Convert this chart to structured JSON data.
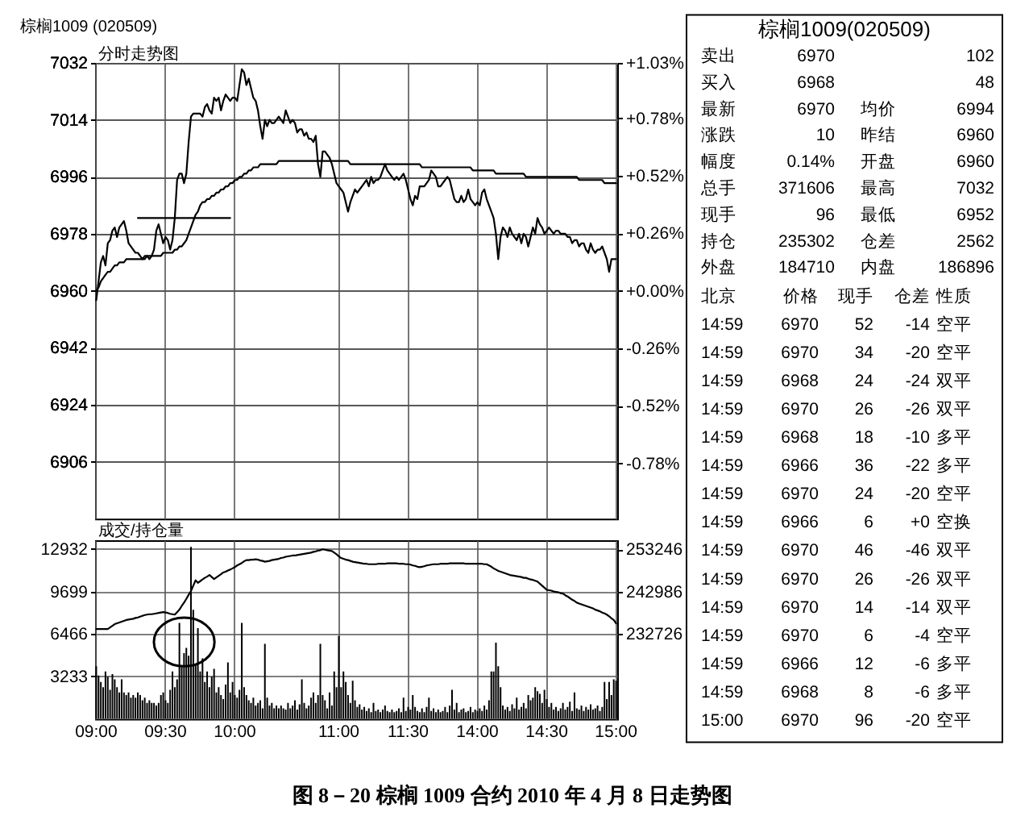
{
  "chart_data": [
    {
      "type": "line",
      "title": "棕榈1009 (020509)",
      "subtitle": "分时走势图",
      "annotations": [
        "图 8－20 棕榈 1009 合约 2010 年 4 月 8 日走势图"
      ],
      "categories": [
        "09:00",
        null,
        null,
        null,
        null,
        null,
        null,
        null,
        null,
        null,
        null,
        null,
        null,
        null,
        null,
        null,
        null,
        null,
        null,
        null,
        null,
        null,
        null,
        null,
        null,
        null,
        null,
        null,
        null,
        null,
        "09:30",
        null,
        null,
        null,
        null,
        null,
        null,
        null,
        null,
        null,
        null,
        null,
        null,
        null,
        null,
        null,
        null,
        null,
        null,
        null,
        null,
        null,
        null,
        null,
        null,
        null,
        null,
        null,
        null,
        null,
        "10:00",
        null,
        null,
        null,
        null,
        null,
        null,
        null,
        null,
        null,
        null,
        null,
        null,
        null,
        null,
        null,
        null,
        null,
        null,
        null,
        null,
        null,
        null,
        null,
        null,
        null,
        null,
        null,
        null,
        null,
        null,
        null,
        null,
        null,
        null,
        null,
        null,
        null,
        null,
        null,
        null,
        null,
        null,
        null,
        null,
        "11:00",
        null,
        null,
        null,
        null,
        null,
        null,
        null,
        null,
        null,
        null,
        null,
        null,
        null,
        null,
        null,
        null,
        null,
        null,
        null,
        null,
        null,
        null,
        null,
        null,
        null,
        null,
        null,
        null,
        null,
        "11:30",
        null,
        null,
        null,
        null,
        null,
        null,
        null,
        null,
        null,
        null,
        null,
        null,
        null,
        null,
        null,
        null,
        null,
        null,
        null,
        null,
        null,
        null,
        null,
        null,
        null,
        null,
        null,
        null,
        null,
        "14:00",
        null,
        null,
        null,
        null,
        null,
        null,
        null,
        null,
        null,
        null,
        null,
        null,
        null,
        null,
        null,
        null,
        null,
        null,
        null,
        null,
        null,
        null,
        null,
        null,
        null,
        null,
        null,
        null,
        null,
        "14:30",
        null,
        null,
        null,
        null,
        null,
        null,
        null,
        null,
        null,
        null,
        null,
        null,
        null,
        null,
        null,
        null,
        null,
        null,
        null,
        null,
        null,
        null,
        null,
        null,
        null,
        null,
        null,
        null,
        null,
        "15:00"
      ],
      "ylim": [
        6888,
        7032
      ],
      "yticks": [
        6906,
        6924,
        6942,
        6960,
        6978,
        6996,
        7014,
        7032
      ],
      "y2lim": [
        -1.03,
        1.03
      ],
      "y2ticks": [
        {
          "value": -0.78,
          "label": "-0.78%"
        },
        {
          "value": -0.52,
          "label": "-0.52%"
        },
        {
          "value": -0.26,
          "label": "-0.26%"
        },
        {
          "value": 0,
          "label": "+0.00%"
        },
        {
          "value": 0.26,
          "label": "+0.26%"
        },
        {
          "value": 0.52,
          "label": "+0.52%"
        },
        {
          "value": 0.78,
          "label": "+0.78%"
        },
        {
          "value": 1.03,
          "label": "+1.03%"
        }
      ],
      "tick_labels": "y",
      "grid": true,
      "series": [
        {
          "color": "#000000",
          "values": [
            6957,
            6963,
            6969,
            6971,
            6968,
            6975,
            6976,
            6979,
            6980,
            6977,
            6980,
            6981,
            6982,
            6979,
            6975,
            6974,
            6973,
            6972,
            6972,
            6971,
            6970,
            6971,
            6971,
            6970,
            6971,
            6973,
            6979,
            6981,
            6978,
            6975,
            6977,
            6976,
            6973,
            6976,
            6983,
            6995,
            6997,
            6997,
            6994,
            6997,
            7007,
            7015,
            7016,
            7016,
            7016,
            7016,
            7015,
            7018,
            7019,
            7017,
            7016,
            7021,
            7020,
            7021,
            7017,
            7020,
            7022,
            7021,
            7020,
            7021,
            7021,
            7020,
            7025,
            7030,
            7029,
            7025,
            7027,
            7024,
            7021,
            7020,
            7017,
            7012,
            7008,
            7014,
            7012,
            7014,
            7013,
            7013,
            7014,
            7015,
            7014,
            7013,
            7017,
            7015,
            7013,
            7014,
            7013,
            7010,
            7011,
            7011,
            7009,
            7010,
            7008,
            7008,
            7007,
            7009,
            7000,
            6996,
            7004,
            7004,
            7003,
            7002,
            7000,
            6997,
            6994,
            6993,
            6992,
            6991,
            6988,
            6985,
            6988,
            6990,
            6992,
            6991,
            6992,
            6993,
            6994,
            6995,
            6993,
            6996,
            6994,
            6995,
            6995,
            6996,
            6998,
            7000,
            6998,
            6997,
            6996,
            6995,
            6996,
            6995,
            6996,
            6997,
            6995,
            6992,
            6989,
            6987,
            6990,
            6989,
            6993,
            6993,
            6993,
            6994,
            6995,
            6998,
            6997,
            6996,
            6993,
            6993,
            6994,
            6995,
            6996,
            6995,
            6992,
            6989,
            6988,
            6988,
            6990,
            6988,
            6989,
            6992,
            6989,
            6988,
            6987,
            6988,
            6987,
            6991,
            6992,
            6989,
            6987,
            6985,
            6983,
            6978,
            6970,
            6977,
            6980,
            6979,
            6977,
            6980,
            6978,
            6977,
            6976,
            6978,
            6975,
            6978,
            6977,
            6974,
            6977,
            6980,
            6978,
            6983,
            6981,
            6980,
            6978,
            6979,
            6980,
            6979,
            6978,
            6979,
            6979,
            6978,
            6978,
            6978,
            6977,
            6977,
            6975,
            6976,
            6976,
            6974,
            6975,
            6975,
            6973,
            6972,
            6975,
            6973,
            6972,
            6973,
            6973,
            6974,
            6972,
            6970,
            6966,
            6970,
            6970,
            6970
          ]
        },
        {
          "color": "#000000",
          "values": [
            6960,
            6961,
            6963,
            6964,
            6965,
            6966,
            6966,
            6967,
            6968,
            6968,
            6969,
            6969,
            6969,
            6970,
            6970,
            6970,
            6970,
            6970,
            6970,
            6970,
            6970,
            6970,
            6971,
            6971,
            6971,
            6971,
            6971,
            6971,
            6971,
            6972,
            6972,
            6972,
            6972,
            6972,
            6973,
            6973,
            6974,
            6974,
            6975,
            6976,
            6978,
            6980,
            6982,
            6984,
            6985,
            6987,
            6988,
            6988,
            6989,
            6989,
            6990,
            6990,
            6991,
            6991,
            6992,
            6992,
            6993,
            6993,
            6994,
            6994,
            6995,
            6995,
            6996,
            6996,
            6997,
            6997,
            6998,
            6998,
            6999,
            6999,
            6999,
            7000,
            7000,
            7000,
            7000,
            7000,
            7000,
            7000,
            7000,
            7001,
            7001,
            7001,
            7001,
            7001,
            7001,
            7001,
            7001,
            7001,
            7001,
            7001,
            7001,
            7001,
            7001,
            7001,
            7001,
            7001,
            7001,
            7001,
            7001,
            7001,
            7001,
            7001,
            7001,
            7001,
            7001,
            7001,
            7001,
            7001,
            7001,
            7001,
            7000,
            7000,
            7000,
            7000,
            7000,
            7000,
            7000,
            7000,
            7000,
            7000,
            7000,
            7000,
            7000,
            7000,
            7000,
            7000,
            7000,
            7000,
            7000,
            7000,
            7000,
            7000,
            7000,
            7000,
            7000,
            7000,
            7000,
            7000,
            7000,
            7000,
            7000,
            6999,
            6999,
            6999,
            6999,
            6999,
            6999,
            6999,
            6999,
            6999,
            6999,
            6999,
            6999,
            6999,
            6999,
            6999,
            6999,
            6999,
            6999,
            6999,
            6999,
            6999,
            6999,
            6998,
            6998,
            6998,
            6998,
            6998,
            6998,
            6998,
            6998,
            6998,
            6998,
            6997,
            6997,
            6997,
            6997,
            6997,
            6997,
            6997,
            6997,
            6997,
            6997,
            6997,
            6997,
            6997,
            6996,
            6996,
            6996,
            6996,
            6996,
            6996,
            6996,
            6996,
            6996,
            6996,
            6996,
            6996,
            6996,
            6996,
            6996,
            6996,
            6996,
            6996,
            6996,
            6996,
            6996,
            6996,
            6996,
            6995,
            6995,
            6995,
            6995,
            6995,
            6995,
            6995,
            6995,
            6995,
            6995,
            6995,
            6994,
            6994,
            6994,
            6994,
            6994,
            6994
          ]
        },
        {
          "color": "#000000",
          "values": [
            null,
            null,
            null,
            null,
            null,
            null,
            null,
            null,
            null,
            null,
            null,
            null,
            null,
            null,
            null,
            null,
            null,
            null,
            6983,
            6983,
            6983,
            6983,
            6983,
            6983,
            6983,
            6983,
            6983,
            6983,
            6983,
            6983,
            6983,
            6983,
            6983,
            6983,
            6983,
            6983,
            6983,
            6983,
            6983,
            6983,
            6983,
            6983,
            6983,
            6983,
            6983,
            6983,
            6983,
            6983,
            6983,
            6983,
            6983,
            6983,
            6983,
            6983,
            6983,
            6983,
            6983,
            6983,
            6983,
            null,
            null,
            null,
            null,
            null,
            null,
            null,
            null,
            null,
            null,
            null,
            null,
            null,
            null,
            null,
            null,
            null,
            null,
            null,
            null,
            null,
            null,
            null,
            null,
            null,
            null,
            null,
            null,
            null,
            null,
            null,
            null,
            null,
            null,
            null,
            null,
            null,
            null,
            null,
            null,
            null,
            null,
            null,
            null,
            null,
            null,
            null,
            null,
            null,
            null,
            null,
            null,
            null,
            null,
            null,
            null,
            null,
            null,
            null,
            null,
            null,
            null,
            null,
            null,
            null,
            null,
            null,
            null,
            null,
            null,
            null,
            null,
            null,
            null,
            null,
            null,
            null,
            null,
            null,
            null,
            null,
            null,
            null,
            null,
            null,
            null,
            null,
            null,
            null,
            null,
            null,
            null,
            null,
            null,
            null,
            null,
            null,
            null,
            null,
            null,
            null,
            null,
            null,
            null,
            null,
            null,
            null,
            null,
            null,
            null,
            null,
            null,
            null,
            null,
            null,
            null,
            null,
            null,
            null,
            null,
            null,
            null,
            null,
            null,
            null,
            null,
            null,
            null,
            null,
            null,
            null,
            null,
            null,
            null,
            null,
            null,
            null,
            null,
            null,
            null,
            null,
            null,
            null,
            null,
            null,
            null,
            null,
            null,
            null,
            null,
            null,
            null,
            null,
            null,
            null,
            null,
            null,
            null,
            null,
            null,
            null,
            null,
            null,
            null,
            null,
            null,
            null
          ]
        }
      ]
    },
    {
      "type": "bar",
      "title": "成交/持仓量",
      "categories": [
        "09:00",
        null,
        null,
        null,
        null,
        null,
        null,
        null,
        null,
        null,
        null,
        null,
        null,
        null,
        null,
        null,
        null,
        null,
        null,
        null,
        null,
        null,
        null,
        null,
        null,
        null,
        null,
        null,
        null,
        null,
        "09:30",
        null,
        null,
        null,
        null,
        null,
        null,
        null,
        null,
        null,
        null,
        null,
        null,
        null,
        null,
        null,
        null,
        null,
        null,
        null,
        null,
        null,
        null,
        null,
        null,
        null,
        null,
        null,
        null,
        null,
        "10:00",
        null,
        null,
        null,
        null,
        null,
        null,
        null,
        null,
        null,
        null,
        null,
        null,
        null,
        null,
        null,
        null,
        null,
        null,
        null,
        null,
        null,
        null,
        null,
        null,
        null,
        null,
        null,
        null,
        null,
        null,
        null,
        null,
        null,
        null,
        null,
        null,
        null,
        null,
        null,
        null,
        null,
        null,
        null,
        null,
        "11:00",
        null,
        null,
        null,
        null,
        null,
        null,
        null,
        null,
        null,
        null,
        null,
        null,
        null,
        null,
        null,
        null,
        null,
        null,
        null,
        null,
        null,
        null,
        null,
        null,
        null,
        null,
        null,
        null,
        null,
        "11:30",
        null,
        null,
        null,
        null,
        null,
        null,
        null,
        null,
        null,
        null,
        null,
        null,
        null,
        null,
        null,
        null,
        null,
        null,
        null,
        null,
        null,
        null,
        null,
        null,
        null,
        null,
        null,
        null,
        null,
        "14:00",
        null,
        null,
        null,
        null,
        null,
        null,
        null,
        null,
        null,
        null,
        null,
        null,
        null,
        null,
        null,
        null,
        null,
        null,
        null,
        null,
        null,
        null,
        null,
        null,
        null,
        null,
        null,
        null,
        null,
        "14:30",
        null,
        null,
        null,
        null,
        null,
        null,
        null,
        null,
        null,
        null,
        null,
        null,
        null,
        null,
        null,
        null,
        null,
        null,
        null,
        null,
        null,
        null,
        null,
        null,
        null,
        null,
        null,
        null,
        null,
        "15:00"
      ],
      "ylim": [
        0,
        13600
      ],
      "yticks": [
        3233,
        6466,
        9699,
        12932
      ],
      "y2lim": [
        212200,
        255400
      ],
      "y2ticks": [
        232726,
        242986,
        253246
      ],
      "grid": true,
      "series": [
        {
          "type": "bar",
          "color": "#000000",
          "values": [
            4000,
            3300,
            2800,
            2400,
            3600,
            3200,
            2200,
            3400,
            3000,
            2400,
            2000,
            3000,
            2000,
            1800,
            2000,
            1600,
            1800,
            1600,
            2000,
            1800,
            1400,
            1600,
            1200,
            1400,
            1200,
            1200,
            1000,
            1200,
            1800,
            2000,
            1400,
            1200,
            2200,
            3600,
            2400,
            3000,
            7300,
            4000,
            5000,
            5400,
            4800,
            13100,
            8300,
            4200,
            6900,
            3600,
            4600,
            2800,
            3600,
            2400,
            3200,
            3800,
            2000,
            2400,
            1800,
            1500,
            2600,
            4300,
            2000,
            2800,
            1800,
            1600,
            2200,
            7300,
            2400,
            1800,
            1400,
            1200,
            1600,
            1000,
            1200,
            1400,
            800,
            5700,
            1600,
            1000,
            1200,
            800,
            1000,
            800,
            1000,
            800,
            700,
            1200,
            800,
            1000,
            1400,
            700,
            1100,
            3000,
            1200,
            800,
            1000,
            1600,
            2000,
            1200,
            1800,
            5700,
            1800,
            1400,
            800,
            2000,
            1000,
            3600,
            2400,
            6300,
            2400,
            3600,
            2800,
            1800,
            1200,
            2900,
            1400,
            900,
            1100,
            700,
            900,
            600,
            800,
            500,
            1200,
            600,
            700,
            500,
            700,
            1000,
            600,
            500,
            700,
            500,
            600,
            800,
            500,
            1600,
            600,
            900,
            700,
            1800,
            900,
            600,
            500,
            800,
            500,
            900,
            1600,
            600,
            800,
            500,
            700,
            500,
            600,
            900,
            500,
            1000,
            2200,
            700,
            1200,
            500,
            700,
            800,
            500,
            600,
            900,
            500,
            700,
            600,
            800,
            600,
            1000,
            700,
            1400,
            3600,
            3600,
            5800,
            4000,
            2400,
            1000,
            700,
            900,
            600,
            1100,
            800,
            1600,
            700,
            900,
            1200,
            800,
            1800,
            1400,
            1600,
            2400,
            2100,
            1900,
            1200,
            2200,
            1500,
            900,
            1200,
            700,
            900,
            600,
            800,
            1200,
            700,
            900,
            1300,
            600,
            2000,
            800,
            700,
            1000,
            600,
            900,
            700,
            1100,
            700,
            800,
            1000,
            600,
            900,
            2800,
            1500,
            2800,
            1800,
            3000,
            2900
          ]
        },
        {
          "type": "line",
          "axis": "y2",
          "color": "#000000",
          "values": [
            233900,
            233900,
            233900,
            233900,
            233900,
            233900,
            234300,
            234700,
            235100,
            235300,
            235500,
            235700,
            235900,
            236100,
            236200,
            236300,
            236400,
            236600,
            236700,
            236900,
            237100,
            237300,
            237400,
            237500,
            237500,
            237600,
            237700,
            237800,
            237900,
            238000,
            237900,
            237800,
            237600,
            237500,
            237400,
            238000,
            238600,
            239500,
            240300,
            241200,
            242200,
            243100,
            244400,
            245700,
            245100,
            245500,
            245900,
            246300,
            246600,
            247000,
            246500,
            246000,
            246400,
            246800,
            247200,
            247600,
            247800,
            248100,
            248300,
            248600,
            248900,
            249300,
            249600,
            249900,
            250300,
            250600,
            250600,
            250700,
            250700,
            250800,
            250700,
            250500,
            250400,
            250200,
            250300,
            250400,
            250600,
            250700,
            250800,
            250900,
            251100,
            251200,
            251400,
            251500,
            251600,
            251700,
            251700,
            251800,
            251900,
            252000,
            252100,
            252200,
            252300,
            252400,
            252600,
            252700,
            252900,
            253000,
            253200,
            253100,
            253000,
            252900,
            252800,
            252400,
            252000,
            251500,
            251100,
            250900,
            250700,
            250600,
            250400,
            250200,
            250100,
            250000,
            249900,
            249800,
            249700,
            249700,
            249600,
            249600,
            249600,
            249600,
            249700,
            249700,
            249700,
            249700,
            249800,
            249800,
            249800,
            249800,
            249800,
            249700,
            249700,
            249700,
            249600,
            249600,
            249500,
            249300,
            249200,
            249000,
            248900,
            249000,
            249100,
            249300,
            249400,
            249500,
            249600,
            249600,
            249600,
            249700,
            249700,
            249700,
            249700,
            249800,
            249800,
            249800,
            249800,
            249800,
            249800,
            249800,
            249700,
            249700,
            249700,
            249700,
            249700,
            249700,
            249700,
            249700,
            249600,
            249600,
            249300,
            249000,
            248600,
            248300,
            248000,
            247800,
            247600,
            247400,
            247200,
            247000,
            246900,
            246800,
            246700,
            246600,
            246500,
            246300,
            246300,
            246100,
            245900,
            245800,
            245600,
            245400,
            244900,
            244400,
            243900,
            243400,
            243300,
            243200,
            243000,
            242900,
            242800,
            242600,
            242500,
            242100,
            241800,
            241400,
            241000,
            240700,
            240300,
            240100,
            239900,
            239700,
            239500,
            239300,
            239100,
            238900,
            238600,
            238400,
            238200,
            237900,
            237700,
            237400,
            237000,
            236500,
            236100,
            235300
          ]
        }
      ]
    },
    {
      "type": "other",
      "title": "棕榈1009(020509)",
      "cell_labels": [
        [
          "卖出",
          "6970",
          "102"
        ],
        [
          "买入",
          "6968",
          "48"
        ],
        [
          "最新",
          "6970",
          "均价",
          "6994"
        ],
        [
          "涨跌",
          "10",
          "昨结",
          "6960"
        ],
        [
          "幅度",
          "0.14%",
          "开盘",
          "6960"
        ],
        [
          "总手",
          "371606",
          "最高",
          "7032"
        ],
        [
          "现手",
          "96",
          "最低",
          "6952"
        ],
        [
          "持仓",
          "235302",
          "仓差",
          "2562"
        ],
        [
          "外盘",
          "184710",
          "内盘",
          "186896"
        ],
        [
          "北京",
          "价格",
          "现手",
          "仓差",
          "性质"
        ],
        [
          "14:59",
          "6970",
          "52",
          "-14",
          "空平"
        ],
        [
          "14:59",
          "6970",
          "34",
          "-20",
          "空平"
        ],
        [
          "14:59",
          "6968",
          "24",
          "-24",
          "双平"
        ],
        [
          "14:59",
          "6970",
          "26",
          "-26",
          "双平"
        ],
        [
          "14:59",
          "6968",
          "18",
          "-10",
          "多平"
        ],
        [
          "14:59",
          "6966",
          "36",
          "-22",
          "多平"
        ],
        [
          "14:59",
          "6970",
          "24",
          "-20",
          "空平"
        ],
        [
          "14:59",
          "6966",
          "6",
          "+0",
          "空换"
        ],
        [
          "14:59",
          "6970",
          "46",
          "-46",
          "双平"
        ],
        [
          "14:59",
          "6970",
          "26",
          "-26",
          "双平"
        ],
        [
          "14:59",
          "6970",
          "14",
          "-14",
          "双平"
        ],
        [
          "14:59",
          "6970",
          "6",
          "-4",
          "空平"
        ],
        [
          "14:59",
          "6966",
          "12",
          "-6",
          "多平"
        ],
        [
          "14:59",
          "6968",
          "8",
          "-6",
          "多平"
        ],
        [
          "15:00",
          "6970",
          "96",
          "-20",
          "空平"
        ]
      ]
    }
  ]
}
